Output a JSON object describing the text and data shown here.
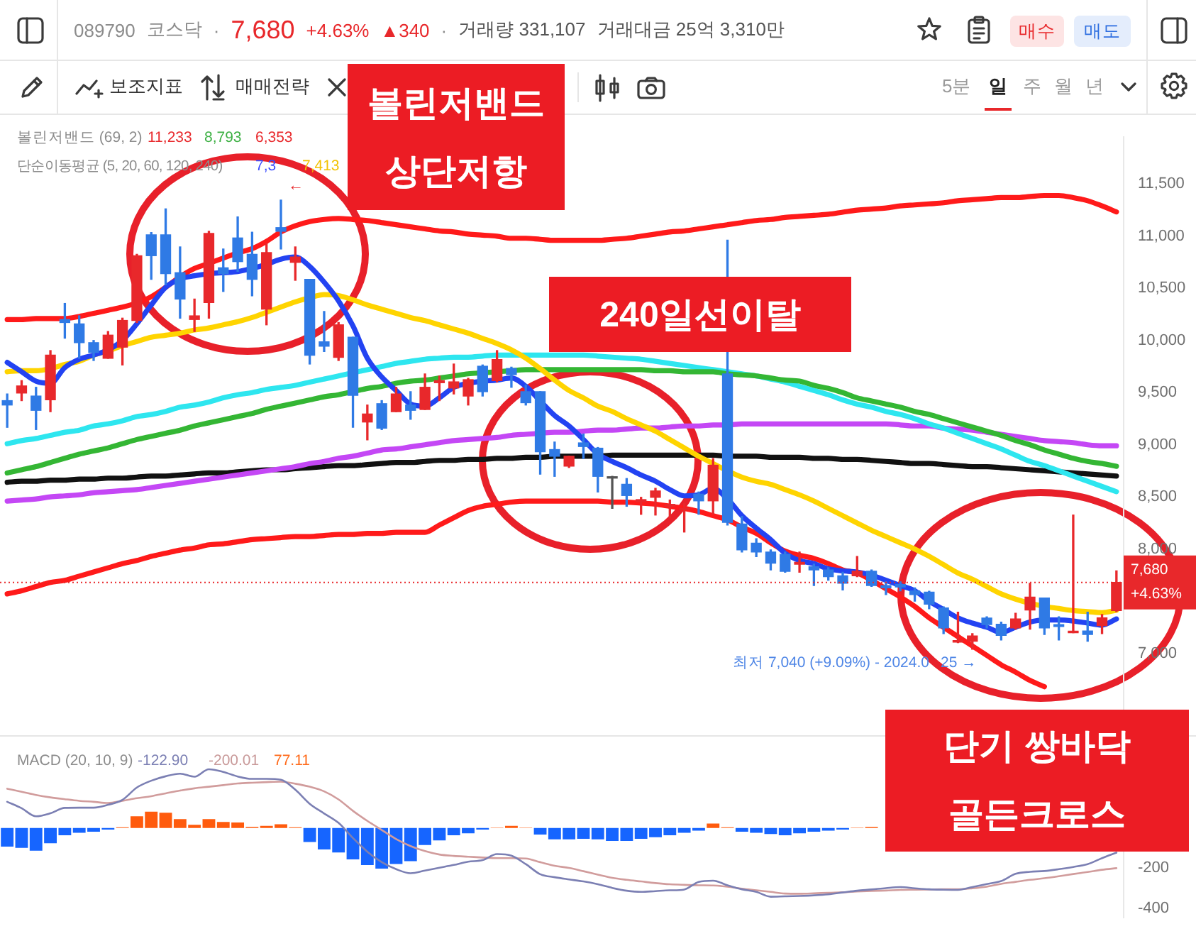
{
  "chart_data": [
    {
      "type": "candlestick",
      "categories": [
        null,
        null,
        null,
        null,
        null,
        null,
        null,
        null,
        null,
        null,
        null,
        null,
        null,
        null,
        null,
        null,
        null,
        null,
        null,
        null,
        null,
        null,
        null,
        null,
        null,
        null,
        null,
        null,
        null,
        null,
        null,
        null,
        null,
        null,
        null,
        null,
        null,
        null,
        null,
        null,
        null,
        null,
        null,
        null,
        null,
        null,
        null,
        null,
        null,
        null,
        null,
        null,
        null,
        null,
        null,
        null,
        null,
        null,
        null,
        null,
        null,
        null,
        null,
        null,
        null,
        null,
        null,
        null,
        null,
        null,
        null,
        null,
        null,
        null,
        null,
        null,
        null,
        null
      ],
      "ohlc": [
        [
          9423,
          9487,
          9167,
          9381
        ],
        [
          9496,
          9615,
          9423,
          9564
        ],
        [
          9467,
          9551,
          9146,
          9330
        ],
        [
          9432,
          9903,
          9317,
          9859
        ],
        [
          10201,
          10355,
          10022,
          10172
        ],
        [
          10159,
          10236,
          9829,
          9979
        ],
        [
          9979,
          10000,
          9808,
          9885
        ],
        [
          9829,
          10086,
          9829,
          10051
        ],
        [
          9936,
          10214,
          9765,
          10192
        ],
        [
          10192,
          10826,
          10172,
          10813
        ],
        [
          11013,
          11035,
          10586,
          10813
        ],
        [
          11013,
          11262,
          10535,
          10641
        ],
        [
          10650,
          10897,
          10214,
          10397
        ],
        [
          10201,
          10397,
          10086,
          10236
        ],
        [
          10364,
          11047,
          10214,
          11026
        ],
        [
          10697,
          10877,
          10470,
          10641
        ],
        [
          10983,
          11185,
          10663,
          10756
        ],
        [
          10826,
          11038,
          10428,
          10586
        ],
        [
          10300,
          10928,
          10150,
          10842
        ],
        [
          11082,
          11346,
          10877,
          11047
        ],
        [
          10749,
          10897,
          10577,
          10800
        ],
        [
          10586,
          10586,
          9774,
          9859
        ],
        [
          9987,
          10278,
          9894,
          9945
        ],
        [
          9838,
          10172,
          9808,
          10150
        ],
        [
          10031,
          10031,
          9167,
          9474
        ],
        [
          9218,
          9381,
          9047,
          9295
        ],
        [
          9394,
          9423,
          9146,
          9159
        ],
        [
          9317,
          9551,
          9317,
          9487
        ],
        [
          9381,
          9509,
          9244,
          9330
        ],
        [
          9338,
          9679,
          9338,
          9551
        ],
        [
          9595,
          9659,
          9423,
          9615
        ],
        [
          9544,
          9774,
          9487,
          9603
        ],
        [
          9467,
          9637,
          9381,
          9624
        ],
        [
          9753,
          9765,
          9467,
          9509
        ],
        [
          9615,
          9903,
          9603,
          9817
        ],
        [
          9731,
          9744,
          9551,
          9672
        ],
        [
          9509,
          9573,
          9381,
          9403
        ],
        [
          9509,
          9509,
          8718,
          8932
        ],
        [
          8954,
          9026,
          8697,
          8890
        ],
        [
          8795,
          8890,
          8782,
          8890
        ],
        [
          9018,
          9103,
          8868,
          8983
        ],
        [
          8967,
          8974,
          8547,
          8697
        ],
        [
          8685,
          8697,
          8390,
          8680
        ],
        [
          8621,
          8676,
          8410,
          8513
        ],
        [
          8454,
          8496,
          8333,
          8474
        ],
        [
          8496,
          8582,
          8326,
          8557
        ],
        [
          8410,
          8470,
          8300,
          8428
        ],
        [
          8377,
          8441,
          8163,
          8385
        ],
        [
          8526,
          8547,
          8333,
          8462
        ],
        [
          8462,
          8868,
          8333,
          8804
        ],
        [
          9679,
          10962,
          8230,
          8256
        ],
        [
          8240,
          8313,
          7971,
          7992
        ],
        [
          8057,
          8099,
          7928,
          7971
        ],
        [
          7971,
          7992,
          7800,
          7864
        ],
        [
          7949,
          7971,
          7778,
          7787
        ],
        [
          7855,
          7971,
          7778,
          7872
        ],
        [
          7830,
          7855,
          7650,
          7800
        ],
        [
          7800,
          7821,
          7701,
          7736
        ],
        [
          7744,
          7778,
          7608,
          7672
        ],
        [
          7744,
          7928,
          7736,
          7787
        ],
        [
          7787,
          7800,
          7641,
          7650
        ],
        [
          7650,
          7685,
          7564,
          7628
        ],
        [
          7660,
          7685,
          7599,
          7637
        ],
        [
          7599,
          7628,
          7500,
          7564
        ],
        [
          7586,
          7595,
          7428,
          7471
        ],
        [
          7436,
          7445,
          7189,
          7244
        ],
        [
          7108,
          7394,
          7103,
          7116
        ],
        [
          7116,
          7189,
          7040,
          7167
        ],
        [
          7339,
          7351,
          7244,
          7275
        ],
        [
          7278,
          7300,
          7128,
          7172
        ],
        [
          7244,
          7385,
          7231,
          7330
        ],
        [
          7416,
          7672,
          7231,
          7539
        ],
        [
          7531,
          7531,
          7180,
          7244
        ],
        [
          7275,
          7351,
          7128,
          7257
        ],
        [
          7198,
          8326,
          7198,
          7210
        ],
        [
          7214,
          7394,
          7116,
          7180
        ],
        [
          7266,
          7372,
          7189,
          7340
        ],
        [
          7410,
          7790,
          7400,
          7680
        ]
      ],
      "colors": [
        "#2f7ae5",
        "#e8282b",
        "#2f7ae5",
        "#e8282b",
        "#2f7ae5",
        "#2f7ae5",
        "#2f7ae5",
        "#e8282b",
        "#e8282b",
        "#e8282b",
        "#2f7ae5",
        "#2f7ae5",
        "#2f7ae5",
        "#e8282b",
        "#e8282b",
        "#2f7ae5",
        "#2f7ae5",
        "#2f7ae5",
        "#e8282b",
        "#2f7ae5",
        "#e8282b",
        "#2f7ae5",
        "#2f7ae5",
        "#e8282b",
        "#2f7ae5",
        "#e8282b",
        "#2f7ae5",
        "#e8282b",
        "#2f7ae5",
        "#e8282b",
        "#e8282b",
        "#e8282b",
        "#e8282b",
        "#2f7ae5",
        "#e8282b",
        "#2f7ae5",
        "#2f7ae5",
        "#2f7ae5",
        "#2f7ae5",
        "#e8282b",
        "#2f7ae5",
        "#2f7ae5",
        "#555555",
        "#2f7ae5",
        "#e8282b",
        "#e8282b",
        "#e8282b",
        "#e8282b",
        "#2f7ae5",
        "#e8282b",
        "#2f7ae5",
        "#2f7ae5",
        "#2f7ae5",
        "#2f7ae5",
        "#2f7ae5",
        "#e8282b",
        "#2f7ae5",
        "#2f7ae5",
        "#2f7ae5",
        "#e8282b",
        "#2f7ae5",
        "#2f7ae5",
        "#2f7ae5",
        "#2f7ae5",
        "#2f7ae5",
        "#2f7ae5",
        "#e8282b",
        "#e8282b",
        "#2f7ae5",
        "#2f7ae5",
        "#e8282b",
        "#e8282b",
        "#2f7ae5",
        "#2f7ae5",
        "#e8282b",
        "#2f7ae5",
        "#e8282b",
        "#e8282b"
      ],
      "series": [
        {
          "type": "line",
          "color": "#2343f2",
          "values": [
            9790,
            9700,
            9610,
            9590,
            9740,
            9820,
            9860,
            9910,
            10000,
            10160,
            10340,
            10510,
            10590,
            10620,
            10640,
            10650,
            10660,
            10690,
            10730,
            10780,
            10800,
            10710,
            10560,
            10380,
            10140,
            9830,
            9650,
            9520,
            9390,
            9370,
            9450,
            9550,
            9590,
            9610,
            9620,
            9640,
            9560,
            9420,
            9280,
            9180,
            9050,
            8910,
            8840,
            8780,
            8710,
            8650,
            8570,
            8510,
            8520,
            8580,
            8480,
            8320,
            8200,
            8090,
            7960,
            7890,
            7860,
            7810,
            7790,
            7780,
            7750,
            7700,
            7650,
            7600,
            7500,
            7420,
            7340,
            7290,
            7250,
            7200,
            7250,
            7300,
            7320,
            7320,
            7310,
            7290,
            7270,
            7330
          ]
        },
        {
          "type": "line",
          "color": "#ffd400",
          "values": [
            9700,
            9710,
            9710,
            9730,
            9770,
            9800,
            9860,
            9900,
            9950,
            9990,
            10030,
            10050,
            10070,
            10100,
            10120,
            10150,
            10180,
            10220,
            10270,
            10320,
            10370,
            10410,
            10440,
            10430,
            10390,
            10340,
            10300,
            10260,
            10220,
            10190,
            10150,
            10110,
            10070,
            10020,
            9970,
            9910,
            9830,
            9730,
            9620,
            9520,
            9450,
            9370,
            9320,
            9250,
            9190,
            9130,
            9050,
            8970,
            8890,
            8820,
            8750,
            8690,
            8650,
            8620,
            8570,
            8520,
            8460,
            8390,
            8320,
            8250,
            8180,
            8120,
            8060,
            8000,
            7930,
            7850,
            7770,
            7710,
            7640,
            7570,
            7520,
            7480,
            7450,
            7430,
            7410,
            7400,
            7390,
            7413
          ]
        },
        {
          "type": "line",
          "color": "#ff1a1a",
          "values": [
            10200,
            10200,
            10210,
            10210,
            10210,
            10230,
            10260,
            10290,
            10320,
            10360,
            10420,
            10510,
            10610,
            10690,
            10740,
            10790,
            10840,
            10880,
            10950,
            11040,
            11100,
            11140,
            11160,
            11170,
            11160,
            11150,
            11130,
            11110,
            11090,
            11070,
            11050,
            11040,
            11020,
            11010,
            11000,
            10980,
            10980,
            10970,
            10960,
            10960,
            10960,
            10960,
            10970,
            10980,
            11000,
            11020,
            11040,
            11050,
            11070,
            11090,
            11110,
            11130,
            11150,
            11160,
            11180,
            11190,
            11200,
            11210,
            11230,
            11250,
            11260,
            11270,
            11290,
            11300,
            11310,
            11320,
            11340,
            11350,
            11360,
            11370,
            11370,
            11380,
            11390,
            11390,
            11370,
            11340,
            11290,
            11233
          ]
        },
        {
          "type": "line",
          "color": "#ff1a1a",
          "values": [
            7570,
            7600,
            7640,
            7680,
            7700,
            7740,
            7780,
            7820,
            7860,
            7890,
            7930,
            7960,
            7990,
            8010,
            8040,
            8050,
            8070,
            8090,
            8100,
            8110,
            8120,
            8120,
            8130,
            8140,
            8140,
            8150,
            8150,
            8160,
            8160,
            8160,
            8230,
            8300,
            8370,
            8410,
            8430,
            8450,
            8460,
            8460,
            8460,
            8460,
            8460,
            8460,
            8450,
            8450,
            8440,
            8430,
            8410,
            8390,
            8360,
            8320,
            8280,
            8210,
            8150,
            8060,
            7980,
            7940,
            7910,
            7860,
            7800,
            7770,
            7700,
            7620,
            7540,
            7450,
            7340,
            7250,
            7160,
            7070,
            6980,
            6890,
            6820,
            6740,
            6680,
            null,
            null,
            null,
            null,
            null
          ]
        },
        {
          "type": "line",
          "color": "#34b634",
          "values": [
            8730,
            8760,
            8790,
            8830,
            8870,
            8910,
            8940,
            8970,
            9010,
            9050,
            9080,
            9110,
            9140,
            9180,
            9210,
            9240,
            9270,
            9300,
            9340,
            9370,
            9400,
            9430,
            9460,
            9480,
            9510,
            9540,
            9560,
            9590,
            9610,
            9620,
            9640,
            9660,
            9680,
            9690,
            9700,
            9710,
            9720,
            9720,
            9720,
            9720,
            9720,
            9720,
            9720,
            9720,
            9720,
            9710,
            9710,
            9700,
            9700,
            9700,
            9680,
            9670,
            9660,
            9640,
            9620,
            9610,
            9570,
            9540,
            9500,
            9450,
            9420,
            9390,
            9360,
            9320,
            9290,
            9250,
            9210,
            9170,
            9130,
            9090,
            9040,
            9000,
            8950,
            8910,
            8870,
            8840,
            8820,
            8793
          ]
        },
        {
          "type": "line",
          "color": "#2ee6ef",
          "values": [
            9010,
            9040,
            9060,
            9090,
            9120,
            9140,
            9180,
            9200,
            9230,
            9270,
            9290,
            9320,
            9360,
            9380,
            9410,
            9450,
            9480,
            9500,
            9530,
            9550,
            9570,
            9600,
            9630,
            9660,
            9690,
            9720,
            9750,
            9780,
            9800,
            9820,
            9830,
            9840,
            9840,
            9850,
            9860,
            9860,
            9860,
            9860,
            9860,
            9860,
            9860,
            9850,
            9840,
            9830,
            9820,
            9800,
            9780,
            9760,
            9740,
            9720,
            9700,
            9680,
            9660,
            9630,
            9600,
            9560,
            9520,
            9480,
            9430,
            9390,
            9360,
            9320,
            9290,
            9250,
            9200,
            9160,
            9110,
            9060,
            9010,
            8960,
            8900,
            8840,
            8800,
            8750,
            8700,
            8650,
            8600,
            8550
          ]
        },
        {
          "type": "line",
          "color": "#c447f5",
          "values": [
            8460,
            8470,
            8480,
            8500,
            8510,
            8520,
            8540,
            8550,
            8560,
            8570,
            8590,
            8610,
            8630,
            8650,
            8670,
            8690,
            8710,
            8730,
            8750,
            8770,
            8790,
            8820,
            8840,
            8870,
            8890,
            8920,
            8950,
            8960,
            8980,
            9000,
            9020,
            9040,
            9050,
            9060,
            9070,
            9090,
            9100,
            9110,
            9120,
            9120,
            9130,
            9140,
            9140,
            9150,
            9160,
            9160,
            9170,
            9180,
            9180,
            9190,
            9190,
            9200,
            9200,
            9200,
            9200,
            9200,
            9200,
            9200,
            9200,
            9200,
            9200,
            9200,
            9190,
            9180,
            9180,
            9160,
            9150,
            9140,
            9120,
            9100,
            9080,
            9060,
            9040,
            9030,
            9020,
            9000,
            8990,
            8990
          ]
        },
        {
          "type": "line",
          "color": "#111111",
          "values": [
            8640,
            8650,
            8650,
            8660,
            8660,
            8670,
            8670,
            8680,
            8680,
            8690,
            8700,
            8700,
            8710,
            8720,
            8730,
            8730,
            8740,
            8750,
            8760,
            8760,
            8770,
            8780,
            8790,
            8800,
            8800,
            8810,
            8820,
            8830,
            8830,
            8840,
            8850,
            8850,
            8860,
            8860,
            8870,
            8870,
            8880,
            8880,
            8890,
            8890,
            8890,
            8890,
            8900,
            8900,
            8900,
            8900,
            8900,
            8900,
            8900,
            8900,
            8890,
            8890,
            8890,
            8880,
            8880,
            8880,
            8870,
            8870,
            8860,
            8860,
            8850,
            8840,
            8830,
            8820,
            8820,
            8810,
            8800,
            8790,
            8790,
            8780,
            8770,
            8760,
            8750,
            8740,
            8730,
            8720,
            8710,
            8700
          ]
        }
      ],
      "ylim": [
        6400,
        11950
      ],
      "yticks": [
        {
          "value": 7000,
          "label": "7,000"
        },
        {
          "value": 8000,
          "label": "8,000"
        },
        {
          "value": 8500,
          "label": "8,500"
        },
        {
          "value": 9000,
          "label": "9,000"
        },
        {
          "value": 9500,
          "label": "9,500"
        },
        {
          "value": 10000,
          "label": "10,000"
        },
        {
          "value": 10500,
          "label": "10,500"
        },
        {
          "value": 11000,
          "label": "11,000"
        },
        {
          "value": 11500,
          "label": "11,500"
        }
      ],
      "ref_lines": [
        {
          "axis": "y",
          "value": 7680,
          "label": "7,680\n+4.63%",
          "color": "#e8282b",
          "line_style": "dotted"
        }
      ],
      "annotations": [
        "089790",
        "코스닥",
        "·",
        "7,680",
        "+4.63%",
        "▲340",
        "·",
        "거래량 331,107",
        "거래대금 25억 3,310만",
        "매수",
        "매도",
        "보조지표",
        "매매전략",
        "5분",
        "일",
        "주",
        "월",
        "년",
        "볼린저밴드 (69, 2)",
        "11,233",
        "8,793",
        "6,353",
        "단순이동평균 (5, 20, 60, 120, 240)",
        "7,3",
        "7,413",
        "←",
        "최저 7,040 (+9.09%) - 2024.0",
        "25 →",
        "볼린저밴드 상단저항",
        "240일선이탈",
        "단기 쌍바닥 골든크로스"
      ]
    },
    {
      "type": "bar",
      "categories": [
        null,
        null,
        null,
        null,
        null,
        null,
        null,
        null,
        null,
        null,
        null,
        null,
        null,
        null,
        null,
        null,
        null,
        null,
        null,
        null,
        null,
        null,
        null,
        null,
        null,
        null,
        null,
        null,
        null,
        null,
        null,
        null,
        null,
        null,
        null,
        null,
        null,
        null,
        null,
        null,
        null,
        null,
        null,
        null,
        null,
        null,
        null,
        null,
        null,
        null,
        null,
        null,
        null,
        null,
        null,
        null,
        null,
        null,
        null,
        null,
        null,
        null,
        null,
        null,
        null,
        null,
        null,
        null,
        null,
        null,
        null,
        null,
        null,
        null,
        null,
        null,
        null,
        null
      ],
      "series": [
        {
          "type": "bar",
          "colors": [
            "#1665ff",
            "#1665ff",
            "#1665ff",
            "#1665ff",
            "#1665ff",
            "#1665ff",
            "#1665ff",
            "#1665ff",
            "#ff5b0d",
            "#ff5b0d",
            "#ff5b0d",
            "#ff5b0d",
            "#ff5b0d",
            "#ff5b0d",
            "#ff5b0d",
            "#ff5b0d",
            "#ff5b0d",
            "#ff5b0d",
            "#ff5b0d",
            "#ff5b0d",
            "#ff5b0d",
            "#1665ff",
            "#1665ff",
            "#1665ff",
            "#1665ff",
            "#1665ff",
            "#1665ff",
            "#1665ff",
            "#1665ff",
            "#1665ff",
            "#1665ff",
            "#1665ff",
            "#1665ff",
            "#1665ff",
            "#ff5b0d",
            "#ff5b0d",
            "#ff5b0d",
            "#1665ff",
            "#1665ff",
            "#1665ff",
            "#1665ff",
            "#1665ff",
            "#1665ff",
            "#1665ff",
            "#1665ff",
            "#1665ff",
            "#1665ff",
            "#1665ff",
            "#1665ff",
            "#ff5b0d",
            "#ff5b0d",
            "#1665ff",
            "#1665ff",
            "#1665ff",
            "#1665ff",
            "#1665ff",
            "#1665ff",
            "#1665ff",
            "#1665ff",
            "#ff5b0d",
            "#ff5b0d",
            "#ff5b0d",
            "#ff5b0d",
            "#ff5b0d",
            "#ff5b0d",
            "#ff5b0d",
            "#ff5b0d",
            "#ff5b0d",
            "#ff5b0d",
            "#ff5b0d",
            "#ff5b0d",
            "#ff5b0d",
            "#ff5b0d",
            "#ff5b0d",
            "#ff5b0d",
            "#ff5b0d",
            "#ff5b0d",
            "#ff5b0d"
          ],
          "values": [
            -93,
            -99,
            -113,
            -76,
            -36,
            -24,
            -19,
            -8,
            3,
            58,
            81,
            76,
            44,
            16,
            44,
            30,
            27,
            5,
            10,
            18,
            3,
            -70,
            -107,
            -122,
            -156,
            -185,
            -202,
            -179,
            -165,
            -85,
            -62,
            -36,
            -27,
            -8,
            2,
            10,
            2,
            -33,
            -57,
            -57,
            -54,
            -57,
            -65,
            -65,
            -54,
            -46,
            -36,
            -24,
            -13,
            22,
            3,
            -19,
            -24,
            -30,
            -36,
            -27,
            -19,
            -13,
            -8,
            2,
            5,
            null,
            null,
            null,
            null,
            null,
            null,
            null,
            null,
            null,
            null,
            null,
            null,
            null,
            null,
            null,
            null,
            null
          ]
        },
        {
          "type": "line",
          "color": "#7b7fb3",
          "values": [
            130,
            98,
            58,
            73,
            100,
            101,
            101,
            115,
            140,
            201,
            235,
            257,
            270,
            255,
            292,
            279,
            256,
            244,
            244,
            240,
            190,
            120,
            72,
            25,
            -50,
            -118,
            -170,
            -205,
            -225,
            -212,
            -198,
            -184,
            -168,
            -160,
            -130,
            -138,
            -180,
            -230,
            -245,
            -256,
            -266,
            -280,
            -298,
            -312,
            -318,
            -314,
            -310,
            -306,
            -268,
            -262,
            -285,
            -305,
            -318,
            -342,
            -340,
            -338,
            -335,
            -330,
            -321,
            -312,
            -306,
            -299,
            -294,
            -300,
            -305,
            -307,
            -308,
            -294,
            -279,
            -264,
            -228,
            -218,
            -214,
            -205,
            -194,
            -180,
            -150,
            -122.9
          ]
        },
        {
          "type": "line",
          "color": "#d19c9c",
          "values": [
            195,
            180,
            164,
            152,
            143,
            135,
            130,
            124,
            135,
            148,
            158,
            172,
            186,
            197,
            205,
            213,
            221,
            225,
            228,
            230,
            220,
            205,
            182,
            142,
            85,
            35,
            -10,
            -55,
            -90,
            -115,
            -132,
            -139,
            -143,
            -147,
            -150,
            -150,
            -152,
            -170,
            -188,
            -199,
            -215,
            -232,
            -248,
            -258,
            -266,
            -274,
            -280,
            -283,
            -285,
            -286,
            -292,
            -302,
            -310,
            -318,
            -326,
            -327,
            -325,
            -322,
            -320,
            -316,
            -313,
            -311,
            -308,
            -307,
            -306,
            -305,
            -305,
            -300,
            -292,
            -278,
            -268,
            -258,
            -250,
            -240,
            -229,
            -219,
            -208,
            -200.01
          ]
        }
      ],
      "ylim": [
        -445,
        337
      ],
      "yticks": [
        -400,
        -200
      ],
      "annotations": [
        "MACD (20, 10, 9)",
        "-122.90",
        "-200.01",
        "77.11"
      ]
    }
  ]
}
